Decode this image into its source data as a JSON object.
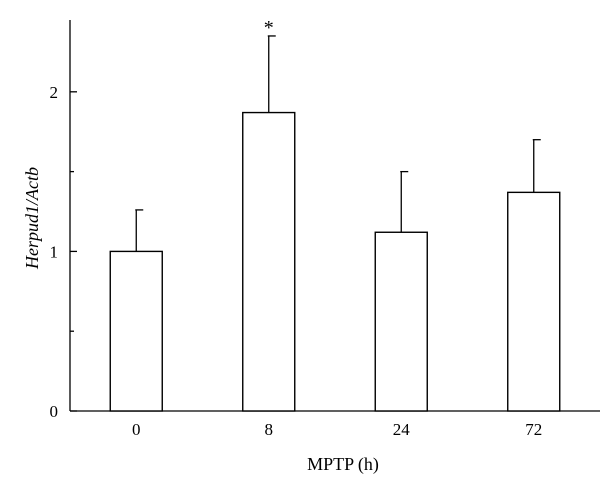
{
  "chart_data": {
    "type": "bar",
    "categories": [
      "0",
      "8",
      "24",
      "72"
    ],
    "values": [
      1.0,
      1.87,
      1.12,
      1.37
    ],
    "error_upper": [
      1.26,
      2.35,
      1.5,
      1.7
    ],
    "annotations": [
      "",
      "*",
      "",
      ""
    ],
    "xlabel": "MPTP (h)",
    "ylabel": "Herpud1/Actb",
    "ylim": [
      0,
      2.45
    ],
    "yticks": [
      0,
      1,
      2
    ],
    "ytick_labels": [
      "0",
      "1",
      "2"
    ],
    "minor_yticks": [
      0.5,
      1.5
    ],
    "grid": false,
    "bar_fill": "#ffffff",
    "bar_stroke": "#000000"
  }
}
